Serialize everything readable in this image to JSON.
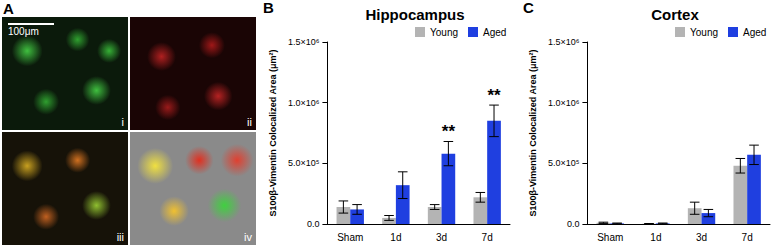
{
  "image_panel": {
    "panel": "A",
    "scale_bar": "100μm",
    "subpanels": [
      "i",
      "ii",
      "iii",
      "iv"
    ]
  },
  "chart_data": [
    {
      "type": "bar",
      "panel": "B",
      "title": "Hippocampus",
      "categories": [
        "Sham",
        "1d",
        "3d",
        "7d"
      ],
      "series": [
        {
          "name": "Young",
          "color": "#b4b4b4",
          "values": [
            140000,
            50000,
            140000,
            220000
          ],
          "errors": [
            50000,
            20000,
            20000,
            40000
          ]
        },
        {
          "name": "Aged",
          "color": "#1f3fe0",
          "values": [
            120000,
            320000,
            580000,
            850000
          ],
          "errors": [
            40000,
            110000,
            100000,
            130000
          ]
        }
      ],
      "y_label": "S100β-Vimentin Colocalized Area (μm²)",
      "ylim": [
        0,
        1500000
      ],
      "yticks": [
        {
          "value": 0,
          "label": "0.0"
        },
        {
          "value": 500000,
          "label": "5.0×10⁵"
        },
        {
          "value": 1000000,
          "label": "1.0×10⁶"
        },
        {
          "value": 1500000,
          "label": "1.5×10⁶"
        }
      ],
      "legend": "top",
      "annotations": [
        {
          "text": "**",
          "category": "3d",
          "series": "Aged"
        },
        {
          "text": "**",
          "category": "7d",
          "series": "Aged"
        }
      ]
    },
    {
      "type": "bar",
      "panel": "C",
      "title": "Cortex",
      "categories": [
        "Sham",
        "1d",
        "3d",
        "7d"
      ],
      "series": [
        {
          "name": "Young",
          "color": "#b4b4b4",
          "values": [
            10000,
            2000,
            130000,
            480000
          ],
          "errors": [
            5000,
            2000,
            50000,
            60000
          ]
        },
        {
          "name": "Aged",
          "color": "#1f3fe0",
          "values": [
            5000,
            5000,
            90000,
            570000
          ],
          "errors": [
            3000,
            3000,
            30000,
            80000
          ]
        }
      ],
      "y_label": "S100β-Vimentin Colocalized Area (μm²)",
      "ylim": [
        0,
        1500000
      ],
      "yticks": [
        {
          "value": 0,
          "label": "0.0"
        },
        {
          "value": 500000,
          "label": "5.0×10⁵"
        },
        {
          "value": 1000000,
          "label": "1.0×10⁶"
        },
        {
          "value": 1500000,
          "label": "1.5×10⁶"
        }
      ],
      "legend": "top",
      "annotations": []
    }
  ]
}
